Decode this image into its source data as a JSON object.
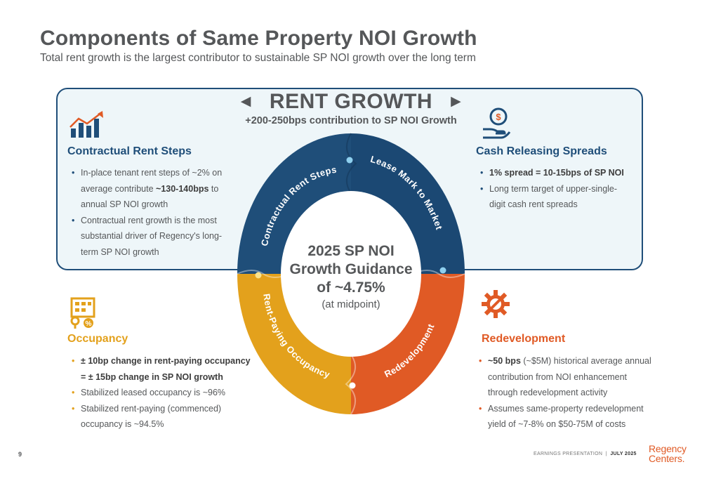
{
  "page": {
    "title": "Components of Same Property NOI Growth",
    "subtitle": "Total rent growth is the largest contributor to sustainable SP NOI growth over the long term",
    "page_number": "9",
    "footer_left": "EARNINGS PRESENTATION",
    "footer_sep": "|",
    "footer_right": "JULY 2025",
    "logo_line1": "Regency",
    "logo_line2": "Centers."
  },
  "rent_growth": {
    "title": "RENT GROWTH",
    "subtitle": "+200-250bps contribution to SP NOI Growth"
  },
  "center": {
    "line1": "2025 SP NOI",
    "line2": "Growth Guidance",
    "line3": "of ~4.75%",
    "line4": "(at midpoint)"
  },
  "ring": {
    "seg1": "Contractual Rent Steps",
    "seg2": "Lease Mark to Market",
    "seg3": "Redevelopment",
    "seg4": "Rent-Paying Occupancy"
  },
  "contractual": {
    "heading": "Contractual Rent Steps",
    "b1_pre": "In-place tenant rent steps of ~2% on average contribute ",
    "b1_bold": "~130-140bps",
    "b1_post": " to annual SP NOI growth",
    "b2": "Contractual rent growth is the most substantial driver of Regency's long-term SP NOI growth"
  },
  "cash": {
    "heading": "Cash Releasing Spreads",
    "b1_bold": "1% spread = 10-15bps of SP NOI",
    "b2": "Long term target of upper-single-digit cash rent spreads"
  },
  "occupancy": {
    "heading": "Occupancy",
    "b1_bold": "± 10bp change in rent-paying occupancy = ± 15bp change in SP NOI growth",
    "b2": "Stabilized leased occupancy is ~96%",
    "b3": "Stabilized rent-paying (commenced) occupancy is ~94.5%"
  },
  "redevelopment": {
    "heading": "Redevelopment",
    "b1_bold": "~50 bps",
    "b1_post": " (~$5M) historical average annual contribution from NOI enhancement through redevelopment activity",
    "b2": "Assumes same-property redevelopment yield of ~7-8% on $50-75M of costs"
  },
  "icons": {
    "contractual": "rising-bar-chart-icon",
    "cash": "hand-dollar-coin-icon",
    "occupancy": "building-key-percent-icon",
    "redevelopment": "gear-wrench-icon"
  },
  "colors": {
    "navy": "#1f4e79",
    "orange": "#e05a25",
    "gold": "#e3a11c",
    "box_fill": "#eef6f9",
    "text_gray": "#555759"
  }
}
